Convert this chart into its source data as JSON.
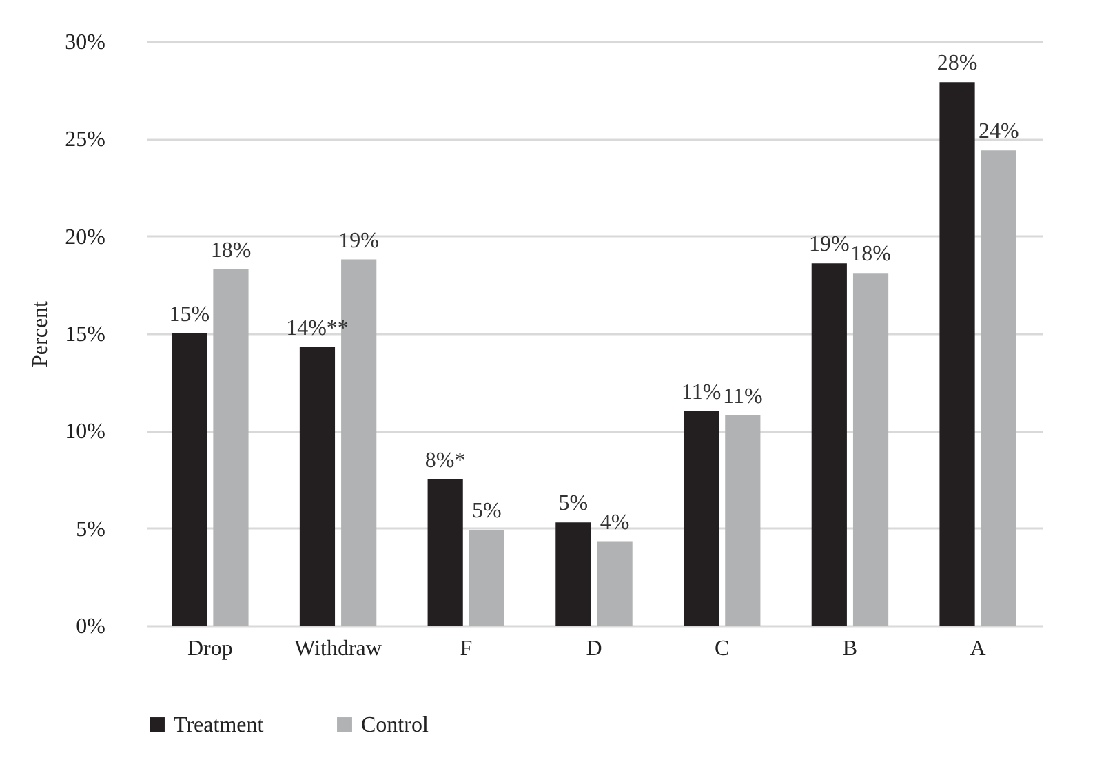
{
  "chart_data": {
    "type": "bar",
    "ylabel": "Percent",
    "categories": [
      "Drop",
      "Withdraw",
      "F",
      "D",
      "C",
      "B",
      "A"
    ],
    "series": [
      {
        "name": "Treatment",
        "color": "#231f20",
        "values": [
          15.0,
          14.3,
          7.5,
          5.3,
          11.0,
          18.6,
          27.9
        ],
        "value_labels": [
          "15%",
          "14%**",
          "8%*",
          "5%",
          "11%",
          "19%",
          "28%"
        ]
      },
      {
        "name": "Control",
        "color": "#b1b2b4",
        "values": [
          18.3,
          18.8,
          4.9,
          4.3,
          10.8,
          18.1,
          24.4
        ],
        "value_labels": [
          "18%",
          "19%",
          "5%",
          "4%",
          "11%",
          "18%",
          "24%"
        ]
      }
    ],
    "ylim": [
      0,
      30
    ],
    "yticks": [
      {
        "value": 0,
        "label": "0%"
      },
      {
        "value": 5,
        "label": "5%"
      },
      {
        "value": 10,
        "label": "10%"
      },
      {
        "value": 15,
        "label": "15%"
      },
      {
        "value": 20,
        "label": "20%"
      },
      {
        "value": 25,
        "label": "25%"
      },
      {
        "value": 30,
        "label": "30%"
      }
    ],
    "grid": "y",
    "legend": "bottom"
  }
}
